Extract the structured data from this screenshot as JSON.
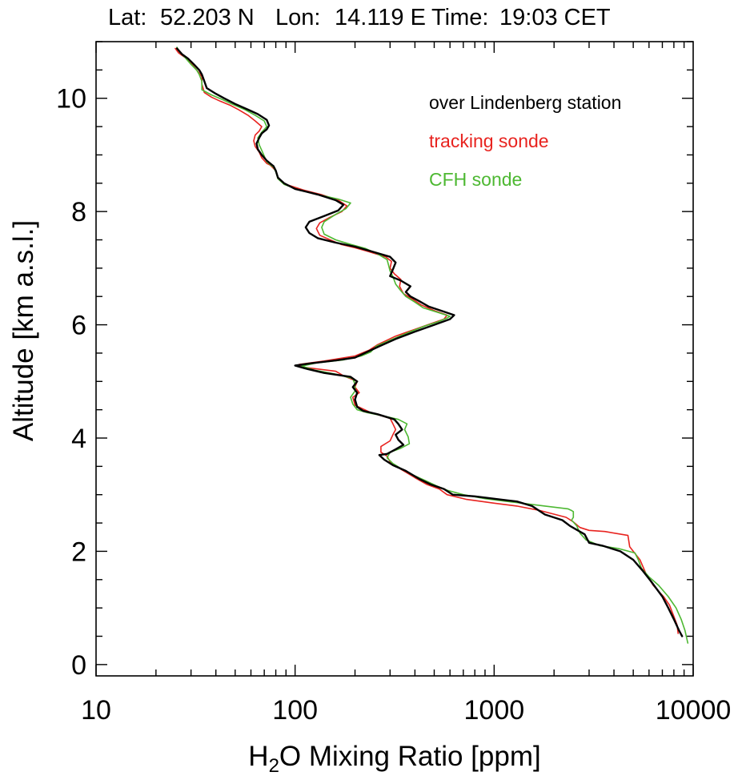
{
  "header": {
    "lat_label": "Lat:",
    "lat_value": "52.203 N",
    "lon_label": "Lon:",
    "lon_value": "14.119 E",
    "time_label": "Time:",
    "time_value": "19:03 CET"
  },
  "chart_data": {
    "type": "line",
    "xlabel_prefix": "H",
    "xlabel_sub": "2",
    "xlabel_suffix": "O Mixing Ratio [ppm]",
    "ylabel": "Altitude [km a.s.l.]",
    "x_scale": "log",
    "xlim": [
      10,
      10000
    ],
    "ylim": [
      -0.2,
      11
    ],
    "x_ticks": [
      10,
      100,
      1000,
      10000
    ],
    "x_tick_labels": [
      "10",
      "100",
      "1000",
      "10000"
    ],
    "y_ticks": [
      0,
      2,
      4,
      6,
      8,
      10
    ],
    "y_tick_labels": [
      "0",
      "2",
      "4",
      "6",
      "8",
      "10"
    ],
    "grid": false,
    "legend_position": "top-right",
    "series": [
      {
        "name": "over Lindenberg station",
        "color": "#000000",
        "points": [
          [
            8800,
            0.5
          ],
          [
            8500,
            0.6
          ],
          [
            8000,
            0.8
          ],
          [
            7500,
            1.0
          ],
          [
            7000,
            1.2
          ],
          [
            6200,
            1.45
          ],
          [
            5600,
            1.65
          ],
          [
            5000,
            1.85
          ],
          [
            4300,
            2.0
          ],
          [
            3500,
            2.1
          ],
          [
            3000,
            2.15
          ],
          [
            2850,
            2.3
          ],
          [
            2600,
            2.38
          ],
          [
            2400,
            2.45
          ],
          [
            2200,
            2.55
          ],
          [
            1800,
            2.65
          ],
          [
            1550,
            2.8
          ],
          [
            1300,
            2.88
          ],
          [
            1050,
            2.92
          ],
          [
            800,
            2.97
          ],
          [
            620,
            3.0
          ],
          [
            560,
            3.1
          ],
          [
            480,
            3.18
          ],
          [
            420,
            3.28
          ],
          [
            360,
            3.42
          ],
          [
            310,
            3.52
          ],
          [
            280,
            3.62
          ],
          [
            265,
            3.7
          ],
          [
            290,
            3.72
          ],
          [
            320,
            3.8
          ],
          [
            350,
            3.88
          ],
          [
            330,
            3.97
          ],
          [
            320,
            4.06
          ],
          [
            345,
            4.15
          ],
          [
            330,
            4.25
          ],
          [
            315,
            4.33
          ],
          [
            260,
            4.42
          ],
          [
            220,
            4.48
          ],
          [
            205,
            4.55
          ],
          [
            200,
            4.68
          ],
          [
            205,
            4.8
          ],
          [
            195,
            4.9
          ],
          [
            205,
            5.0
          ],
          [
            190,
            5.08
          ],
          [
            140,
            5.15
          ],
          [
            115,
            5.22
          ],
          [
            100,
            5.28
          ],
          [
            120,
            5.32
          ],
          [
            160,
            5.37
          ],
          [
            200,
            5.42
          ],
          [
            230,
            5.52
          ],
          [
            265,
            5.62
          ],
          [
            320,
            5.75
          ],
          [
            400,
            5.88
          ],
          [
            500,
            6.0
          ],
          [
            600,
            6.1
          ],
          [
            630,
            6.17
          ],
          [
            540,
            6.25
          ],
          [
            470,
            6.32
          ],
          [
            420,
            6.42
          ],
          [
            380,
            6.5
          ],
          [
            360,
            6.58
          ],
          [
            380,
            6.68
          ],
          [
            340,
            6.78
          ],
          [
            300,
            6.86
          ],
          [
            310,
            6.98
          ],
          [
            320,
            7.1
          ],
          [
            300,
            7.2
          ],
          [
            240,
            7.3
          ],
          [
            200,
            7.38
          ],
          [
            160,
            7.45
          ],
          [
            130,
            7.53
          ],
          [
            118,
            7.62
          ],
          [
            113,
            7.72
          ],
          [
            118,
            7.82
          ],
          [
            140,
            7.92
          ],
          [
            165,
            8.02
          ],
          [
            175,
            8.12
          ],
          [
            160,
            8.2
          ],
          [
            130,
            8.3
          ],
          [
            100,
            8.4
          ],
          [
            88,
            8.5
          ],
          [
            82,
            8.6
          ],
          [
            80,
            8.72
          ],
          [
            78,
            8.8
          ],
          [
            72,
            8.9
          ],
          [
            68,
            9.0
          ],
          [
            65,
            9.1
          ],
          [
            64,
            9.2
          ],
          [
            66,
            9.3
          ],
          [
            68,
            9.38
          ],
          [
            72,
            9.45
          ],
          [
            74,
            9.52
          ],
          [
            72,
            9.62
          ],
          [
            65,
            9.72
          ],
          [
            58,
            9.8
          ],
          [
            50,
            9.9
          ],
          [
            44,
            10.0
          ],
          [
            40,
            10.08
          ],
          [
            36,
            10.18
          ],
          [
            35,
            10.3
          ],
          [
            34,
            10.42
          ],
          [
            33,
            10.5
          ],
          [
            31,
            10.6
          ],
          [
            29,
            10.7
          ],
          [
            27,
            10.78
          ],
          [
            25.5,
            10.88
          ]
        ]
      },
      {
        "name": "tracking sonde",
        "color": "#e8231f",
        "points": [
          [
            8400,
            0.55
          ],
          [
            8300,
            0.7
          ],
          [
            8000,
            0.85
          ],
          [
            7600,
            1.05
          ],
          [
            7100,
            1.2
          ],
          [
            6300,
            1.4
          ],
          [
            5800,
            1.6
          ],
          [
            5400,
            1.85
          ],
          [
            4800,
            2.08
          ],
          [
            4700,
            2.28
          ],
          [
            3600,
            2.35
          ],
          [
            3000,
            2.37
          ],
          [
            2700,
            2.42
          ],
          [
            2500,
            2.52
          ],
          [
            2300,
            2.6
          ],
          [
            1700,
            2.72
          ],
          [
            1300,
            2.8
          ],
          [
            1000,
            2.85
          ],
          [
            720,
            2.92
          ],
          [
            580,
            3.0
          ],
          [
            530,
            3.1
          ],
          [
            460,
            3.18
          ],
          [
            400,
            3.3
          ],
          [
            340,
            3.45
          ],
          [
            300,
            3.58
          ],
          [
            290,
            3.68
          ],
          [
            270,
            3.75
          ],
          [
            270,
            3.85
          ],
          [
            300,
            3.95
          ],
          [
            310,
            4.06
          ],
          [
            320,
            4.15
          ],
          [
            310,
            4.25
          ],
          [
            300,
            4.35
          ],
          [
            240,
            4.45
          ],
          [
            200,
            4.58
          ],
          [
            195,
            4.72
          ],
          [
            210,
            4.8
          ],
          [
            200,
            4.9
          ],
          [
            205,
            5.0
          ],
          [
            175,
            5.1
          ],
          [
            160,
            5.18
          ],
          [
            110,
            5.25
          ],
          [
            105,
            5.3
          ],
          [
            140,
            5.36
          ],
          [
            200,
            5.45
          ],
          [
            235,
            5.55
          ],
          [
            260,
            5.65
          ],
          [
            320,
            5.8
          ],
          [
            400,
            5.92
          ],
          [
            480,
            6.02
          ],
          [
            560,
            6.1
          ],
          [
            580,
            6.17
          ],
          [
            500,
            6.25
          ],
          [
            430,
            6.35
          ],
          [
            390,
            6.45
          ],
          [
            350,
            6.55
          ],
          [
            335,
            6.68
          ],
          [
            340,
            6.8
          ],
          [
            315,
            6.9
          ],
          [
            300,
            7.0
          ],
          [
            305,
            7.12
          ],
          [
            285,
            7.2
          ],
          [
            230,
            7.3
          ],
          [
            200,
            7.36
          ],
          [
            170,
            7.42
          ],
          [
            150,
            7.5
          ],
          [
            133,
            7.58
          ],
          [
            128,
            7.7
          ],
          [
            133,
            7.8
          ],
          [
            150,
            7.9
          ],
          [
            172,
            8.0
          ],
          [
            182,
            8.1
          ],
          [
            165,
            8.2
          ],
          [
            135,
            8.3
          ],
          [
            110,
            8.38
          ],
          [
            90,
            8.48
          ],
          [
            82,
            8.58
          ],
          [
            80,
            8.72
          ],
          [
            75,
            8.82
          ],
          [
            72,
            8.85
          ],
          [
            68,
            8.95
          ],
          [
            66,
            9.05
          ],
          [
            63,
            9.15
          ],
          [
            62,
            9.25
          ],
          [
            63,
            9.35
          ],
          [
            66,
            9.42
          ],
          [
            68,
            9.5
          ],
          [
            63,
            9.6
          ],
          [
            58,
            9.7
          ],
          [
            52,
            9.8
          ],
          [
            47,
            9.88
          ],
          [
            42,
            9.95
          ],
          [
            38,
            10.02
          ],
          [
            35,
            10.1
          ],
          [
            34,
            10.25
          ],
          [
            34,
            10.38
          ],
          [
            32,
            10.5
          ],
          [
            30,
            10.62
          ],
          [
            28,
            10.72
          ],
          [
            26,
            10.8
          ],
          [
            25,
            10.88
          ]
        ]
      },
      {
        "name": "CFH sonde",
        "color": "#4db832",
        "points": [
          [
            9400,
            0.38
          ],
          [
            9100,
            0.6
          ],
          [
            8700,
            0.8
          ],
          [
            8200,
            1.0
          ],
          [
            7500,
            1.2
          ],
          [
            6700,
            1.4
          ],
          [
            6000,
            1.55
          ],
          [
            5500,
            1.7
          ],
          [
            5300,
            1.85
          ],
          [
            5100,
            1.97
          ],
          [
            4200,
            2.05
          ],
          [
            3400,
            2.1
          ],
          [
            2900,
            2.2
          ],
          [
            2700,
            2.32
          ],
          [
            2600,
            2.45
          ],
          [
            2450,
            2.55
          ],
          [
            2500,
            2.6
          ],
          [
            2500,
            2.7
          ],
          [
            2450,
            2.72
          ],
          [
            2350,
            2.75
          ],
          [
            1800,
            2.8
          ],
          [
            1300,
            2.86
          ],
          [
            900,
            2.93
          ],
          [
            700,
            3.0
          ],
          [
            580,
            3.08
          ],
          [
            510,
            3.16
          ],
          [
            450,
            3.25
          ],
          [
            390,
            3.35
          ],
          [
            345,
            3.45
          ],
          [
            310,
            3.55
          ],
          [
            290,
            3.65
          ],
          [
            300,
            3.75
          ],
          [
            340,
            3.82
          ],
          [
            375,
            3.9
          ],
          [
            370,
            4.02
          ],
          [
            355,
            4.15
          ],
          [
            365,
            4.25
          ],
          [
            330,
            4.33
          ],
          [
            270,
            4.4
          ],
          [
            230,
            4.45
          ],
          [
            205,
            4.5
          ],
          [
            195,
            4.6
          ],
          [
            190,
            4.72
          ],
          [
            200,
            4.83
          ],
          [
            200,
            4.95
          ],
          [
            195,
            5.05
          ],
          [
            160,
            5.13
          ],
          [
            125,
            5.2
          ],
          [
            108,
            5.27
          ],
          [
            130,
            5.33
          ],
          [
            175,
            5.38
          ],
          [
            215,
            5.45
          ],
          [
            240,
            5.52
          ],
          [
            255,
            5.62
          ],
          [
            310,
            5.75
          ],
          [
            380,
            5.88
          ],
          [
            450,
            5.98
          ],
          [
            520,
            6.05
          ],
          [
            580,
            6.12
          ],
          [
            600,
            6.15
          ],
          [
            520,
            6.22
          ],
          [
            440,
            6.3
          ],
          [
            400,
            6.4
          ],
          [
            360,
            6.5
          ],
          [
            340,
            6.6
          ],
          [
            320,
            6.72
          ],
          [
            310,
            6.85
          ],
          [
            300,
            6.95
          ],
          [
            295,
            7.05
          ],
          [
            290,
            7.15
          ],
          [
            260,
            7.25
          ],
          [
            225,
            7.35
          ],
          [
            190,
            7.42
          ],
          [
            160,
            7.5
          ],
          [
            140,
            7.6
          ],
          [
            136,
            7.72
          ],
          [
            140,
            7.82
          ],
          [
            160,
            7.95
          ],
          [
            180,
            8.05
          ],
          [
            190,
            8.15
          ],
          [
            165,
            8.22
          ],
          [
            130,
            8.3
          ],
          [
            105,
            8.38
          ],
          [
            88,
            8.48
          ],
          [
            82,
            8.58
          ],
          [
            80,
            8.7
          ],
          [
            78,
            8.78
          ],
          [
            72,
            8.88
          ],
          [
            70,
            8.98
          ],
          [
            68,
            9.08
          ],
          [
            66,
            9.18
          ],
          [
            65,
            9.3
          ],
          [
            68,
            9.4
          ],
          [
            72,
            9.5
          ],
          [
            70,
            9.6
          ],
          [
            63,
            9.7
          ],
          [
            56,
            9.8
          ],
          [
            48,
            9.9
          ],
          [
            43,
            9.98
          ],
          [
            38,
            10.06
          ],
          [
            34,
            10.15
          ],
          [
            34,
            10.3
          ],
          [
            33,
            10.42
          ],
          [
            32,
            10.5
          ],
          [
            30,
            10.6
          ],
          [
            28,
            10.72
          ],
          [
            26.5,
            10.8
          ],
          [
            25.5,
            10.9
          ]
        ]
      }
    ]
  }
}
